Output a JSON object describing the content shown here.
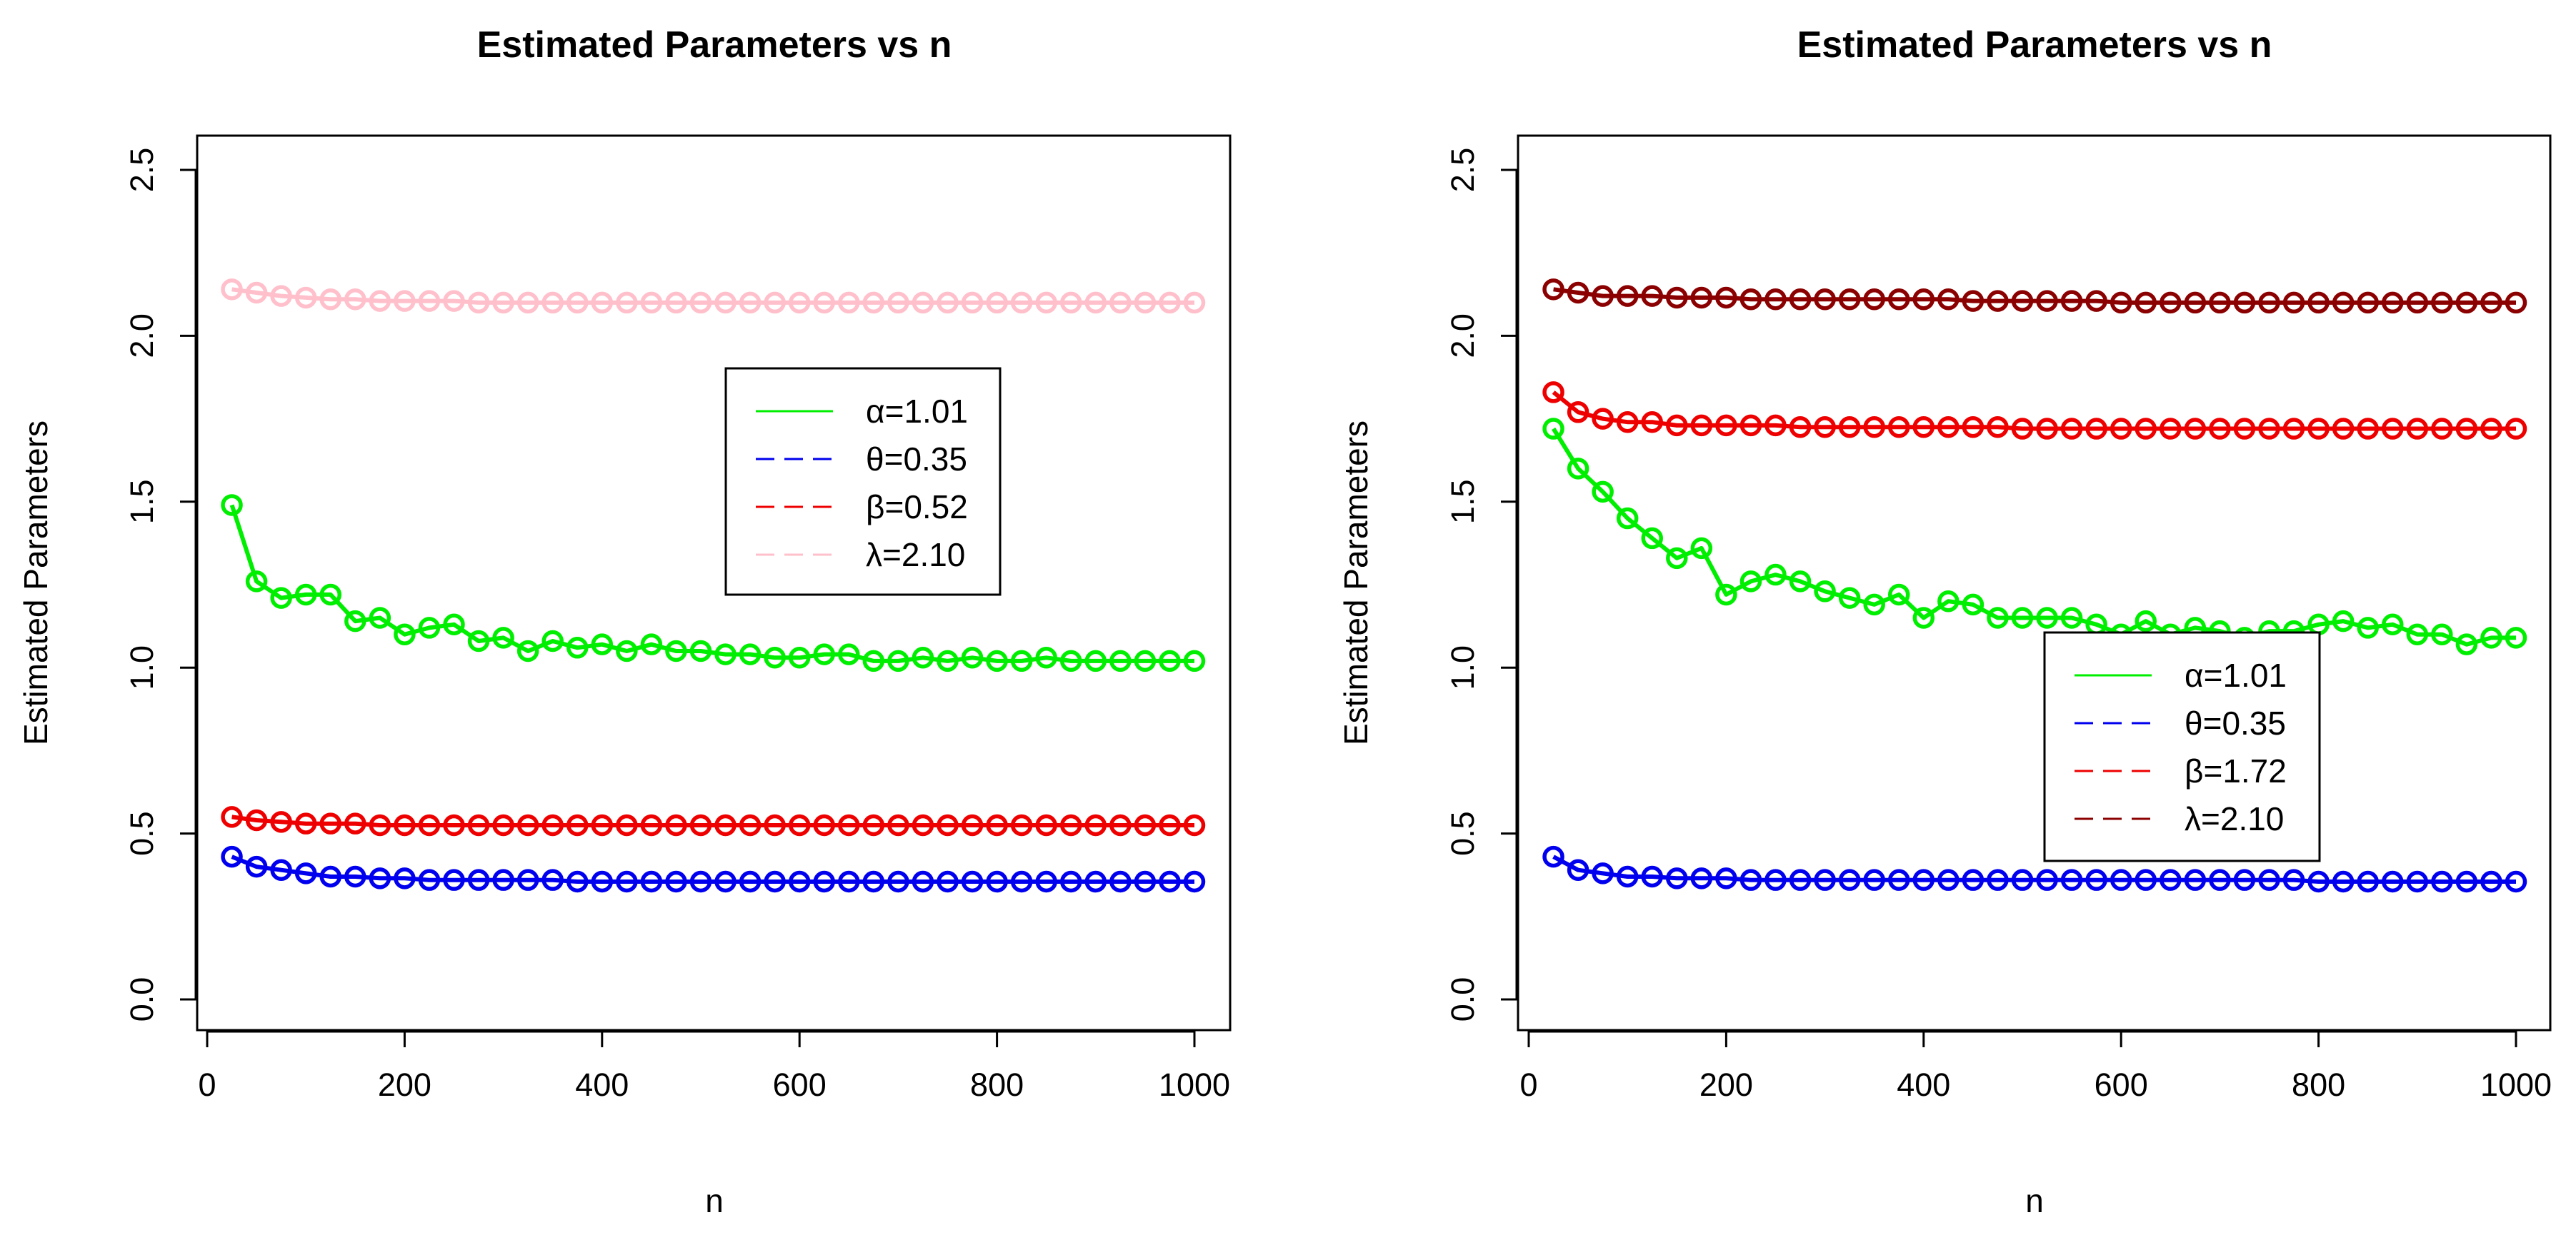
{
  "chart_data": [
    {
      "type": "line",
      "title": "Estimated Parameters vs n",
      "xlabel": "n",
      "ylabel": "Estimated Parameters",
      "xlim": [
        0,
        1000
      ],
      "ylim": [
        0.0,
        2.5
      ],
      "xticks": [
        "0",
        "200",
        "400",
        "600",
        "800",
        "1000"
      ],
      "yticks": [
        "0.0",
        "0.5",
        "1.0",
        "1.5",
        "2.0",
        "2.5"
      ],
      "legend_position": "center-right",
      "x": [
        25,
        50,
        75,
        100,
        125,
        150,
        175,
        200,
        225,
        250,
        275,
        300,
        325,
        350,
        375,
        400,
        425,
        450,
        475,
        500,
        525,
        550,
        575,
        600,
        625,
        650,
        675,
        700,
        725,
        750,
        775,
        800,
        825,
        850,
        875,
        900,
        925,
        950,
        975,
        1000
      ],
      "series": [
        {
          "name": "α=1.01",
          "color": "#00ee00",
          "legend_dash": "solid",
          "values": [
            1.49,
            1.26,
            1.21,
            1.22,
            1.22,
            1.14,
            1.15,
            1.1,
            1.12,
            1.13,
            1.08,
            1.09,
            1.05,
            1.08,
            1.06,
            1.07,
            1.05,
            1.07,
            1.05,
            1.05,
            1.04,
            1.04,
            1.03,
            1.03,
            1.04,
            1.04,
            1.02,
            1.02,
            1.03,
            1.02,
            1.03,
            1.02,
            1.02,
            1.03,
            1.02,
            1.02,
            1.02,
            1.02,
            1.02,
            1.02
          ]
        },
        {
          "name": "θ=0.35",
          "color": "#0000ee",
          "legend_dash": "dashed",
          "values": [
            0.43,
            0.4,
            0.39,
            0.38,
            0.37,
            0.37,
            0.365,
            0.365,
            0.36,
            0.36,
            0.36,
            0.36,
            0.36,
            0.36,
            0.355,
            0.355,
            0.355,
            0.355,
            0.355,
            0.355,
            0.355,
            0.355,
            0.355,
            0.355,
            0.355,
            0.355,
            0.355,
            0.355,
            0.355,
            0.355,
            0.355,
            0.355,
            0.355,
            0.355,
            0.355,
            0.355,
            0.355,
            0.355,
            0.355,
            0.355
          ]
        },
        {
          "name": "β=0.52",
          "color": "#ee0000",
          "legend_dash": "dashed",
          "values": [
            0.55,
            0.54,
            0.535,
            0.53,
            0.53,
            0.53,
            0.525,
            0.525,
            0.525,
            0.525,
            0.525,
            0.525,
            0.525,
            0.525,
            0.525,
            0.525,
            0.525,
            0.525,
            0.525,
            0.525,
            0.525,
            0.525,
            0.525,
            0.525,
            0.525,
            0.525,
            0.525,
            0.525,
            0.525,
            0.525,
            0.525,
            0.525,
            0.525,
            0.525,
            0.525,
            0.525,
            0.525,
            0.525,
            0.525,
            0.525
          ]
        },
        {
          "name": "λ=2.10",
          "color": "#ffc0cb",
          "legend_dash": "dashed",
          "values": [
            2.14,
            2.13,
            2.12,
            2.115,
            2.11,
            2.11,
            2.105,
            2.105,
            2.105,
            2.105,
            2.1,
            2.1,
            2.1,
            2.1,
            2.1,
            2.1,
            2.1,
            2.1,
            2.1,
            2.1,
            2.1,
            2.1,
            2.1,
            2.1,
            2.1,
            2.1,
            2.1,
            2.1,
            2.1,
            2.1,
            2.1,
            2.1,
            2.1,
            2.1,
            2.1,
            2.1,
            2.1,
            2.1,
            2.1,
            2.1
          ]
        }
      ]
    },
    {
      "type": "line",
      "title": "Estimated Parameters vs n",
      "xlabel": "n",
      "ylabel": "Estimated Parameters",
      "xlim": [
        0,
        1000
      ],
      "ylim": [
        0.0,
        2.5
      ],
      "xticks": [
        "0",
        "200",
        "400",
        "600",
        "800",
        "1000"
      ],
      "yticks": [
        "0.0",
        "0.5",
        "1.0",
        "1.5",
        "2.0",
        "2.5"
      ],
      "legend_position": "bottom-right",
      "x": [
        25,
        50,
        75,
        100,
        125,
        150,
        175,
        200,
        225,
        250,
        275,
        300,
        325,
        350,
        375,
        400,
        425,
        450,
        475,
        500,
        525,
        550,
        575,
        600,
        625,
        650,
        675,
        700,
        725,
        750,
        775,
        800,
        825,
        850,
        875,
        900,
        925,
        950,
        975,
        1000
      ],
      "series": [
        {
          "name": "α=1.01",
          "color": "#00ee00",
          "legend_dash": "solid",
          "values": [
            1.72,
            1.6,
            1.53,
            1.45,
            1.39,
            1.33,
            1.36,
            1.22,
            1.26,
            1.28,
            1.26,
            1.23,
            1.21,
            1.19,
            1.22,
            1.15,
            1.2,
            1.19,
            1.15,
            1.15,
            1.15,
            1.15,
            1.13,
            1.1,
            1.14,
            1.1,
            1.12,
            1.11,
            1.09,
            1.11,
            1.11,
            1.13,
            1.14,
            1.12,
            1.13,
            1.1,
            1.1,
            1.07,
            1.09,
            1.09
          ]
        },
        {
          "name": "θ=0.35",
          "color": "#0000ee",
          "legend_dash": "dashed",
          "values": [
            0.43,
            0.39,
            0.38,
            0.37,
            0.37,
            0.365,
            0.365,
            0.365,
            0.36,
            0.36,
            0.36,
            0.36,
            0.36,
            0.36,
            0.36,
            0.36,
            0.36,
            0.36,
            0.36,
            0.36,
            0.36,
            0.36,
            0.36,
            0.36,
            0.36,
            0.36,
            0.36,
            0.36,
            0.36,
            0.36,
            0.36,
            0.355,
            0.355,
            0.355,
            0.355,
            0.355,
            0.355,
            0.355,
            0.355,
            0.355
          ]
        },
        {
          "name": "β=1.72",
          "color": "#ee0000",
          "legend_dash": "dashed",
          "values": [
            1.83,
            1.77,
            1.75,
            1.74,
            1.74,
            1.73,
            1.73,
            1.73,
            1.73,
            1.73,
            1.725,
            1.725,
            1.725,
            1.725,
            1.725,
            1.725,
            1.725,
            1.725,
            1.725,
            1.72,
            1.72,
            1.72,
            1.72,
            1.72,
            1.72,
            1.72,
            1.72,
            1.72,
            1.72,
            1.72,
            1.72,
            1.72,
            1.72,
            1.72,
            1.72,
            1.72,
            1.72,
            1.72,
            1.72,
            1.72
          ]
        },
        {
          "name": "λ=2.10",
          "color": "#8b0000",
          "legend_dash": "dashed",
          "values": [
            2.14,
            2.13,
            2.12,
            2.12,
            2.12,
            2.115,
            2.115,
            2.115,
            2.11,
            2.11,
            2.11,
            2.11,
            2.11,
            2.11,
            2.11,
            2.11,
            2.11,
            2.105,
            2.105,
            2.105,
            2.105,
            2.105,
            2.105,
            2.1,
            2.1,
            2.1,
            2.1,
            2.1,
            2.1,
            2.1,
            2.1,
            2.1,
            2.1,
            2.1,
            2.1,
            2.1,
            2.1,
            2.1,
            2.1,
            2.1
          ]
        }
      ]
    }
  ]
}
